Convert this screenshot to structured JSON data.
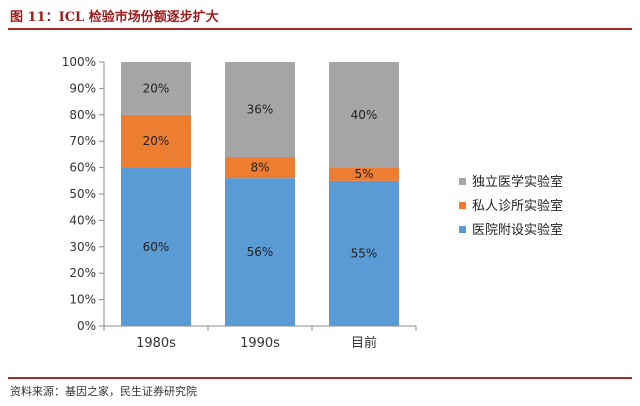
{
  "header": {
    "title": "图 11：ICL 检验市场份额逐步扩大"
  },
  "footer": {
    "source": "资料来源：基因之家，民生证券研究院"
  },
  "colors": {
    "title": "#9b1c1c",
    "rule": "#a52a2a",
    "axis": "#8c8c8c",
    "series": [
      "#5b9bd5",
      "#ed7d31",
      "#a5a5a5"
    ]
  },
  "chart_data": {
    "type": "bar",
    "stacked": true,
    "title": "",
    "xlabel": "",
    "ylabel": "",
    "ylim": [
      0,
      100
    ],
    "yticks": [
      "0%",
      "10%",
      "20%",
      "30%",
      "40%",
      "50%",
      "60%",
      "70%",
      "80%",
      "90%",
      "100%"
    ],
    "grid": false,
    "legend_position": "right",
    "categories": [
      "1980s",
      "1990s",
      "目前"
    ],
    "series": [
      {
        "name": "医院附设实验室",
        "values": [
          60,
          56,
          55
        ],
        "labels": [
          "60%",
          "56%",
          "55%"
        ],
        "color": "#5b9bd5"
      },
      {
        "name": "私人诊所实验室",
        "values": [
          20,
          8,
          5
        ],
        "labels": [
          "20%",
          "8%",
          "5%"
        ],
        "color": "#ed7d31"
      },
      {
        "name": "独立医学实验室",
        "values": [
          20,
          36,
          40
        ],
        "labels": [
          "20%",
          "36%",
          "40%"
        ],
        "color": "#a5a5a5"
      }
    ]
  }
}
